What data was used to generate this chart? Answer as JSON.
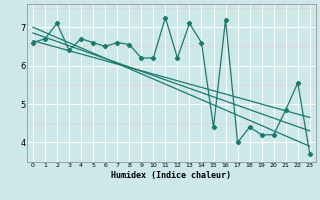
{
  "xlabel": "Humidex (Indice chaleur)",
  "ylabel": "",
  "background_color": "#cce8e8",
  "grid_color": "#ffffff",
  "line_color": "#1a7a6e",
  "x_data": [
    0,
    1,
    2,
    3,
    4,
    5,
    6,
    7,
    8,
    9,
    10,
    11,
    12,
    13,
    14,
    15,
    16,
    17,
    18,
    19,
    20,
    21,
    22,
    23
  ],
  "y_data": [
    6.6,
    6.7,
    7.1,
    6.4,
    6.7,
    6.6,
    6.5,
    6.6,
    6.55,
    6.2,
    6.2,
    7.25,
    6.2,
    7.1,
    6.6,
    4.4,
    7.2,
    4.0,
    4.4,
    4.2,
    4.2,
    4.85,
    5.55,
    3.7
  ],
  "xlim": [
    -0.5,
    23.5
  ],
  "ylim": [
    3.5,
    7.6
  ],
  "yticks": [
    4,
    5,
    6,
    7
  ],
  "xticks": [
    0,
    1,
    2,
    3,
    4,
    5,
    6,
    7,
    8,
    9,
    10,
    11,
    12,
    13,
    14,
    15,
    16,
    17,
    18,
    19,
    20,
    21,
    22,
    23
  ],
  "trend_color": "#1a7a6e",
  "trend_lines": [
    {
      "x0": 0,
      "y0": 7.0,
      "x1": 23,
      "y1": 3.9
    },
    {
      "x0": 0,
      "y0": 6.85,
      "x1": 23,
      "y1": 4.3
    },
    {
      "x0": 0,
      "y0": 6.65,
      "x1": 23,
      "y1": 4.65
    }
  ]
}
